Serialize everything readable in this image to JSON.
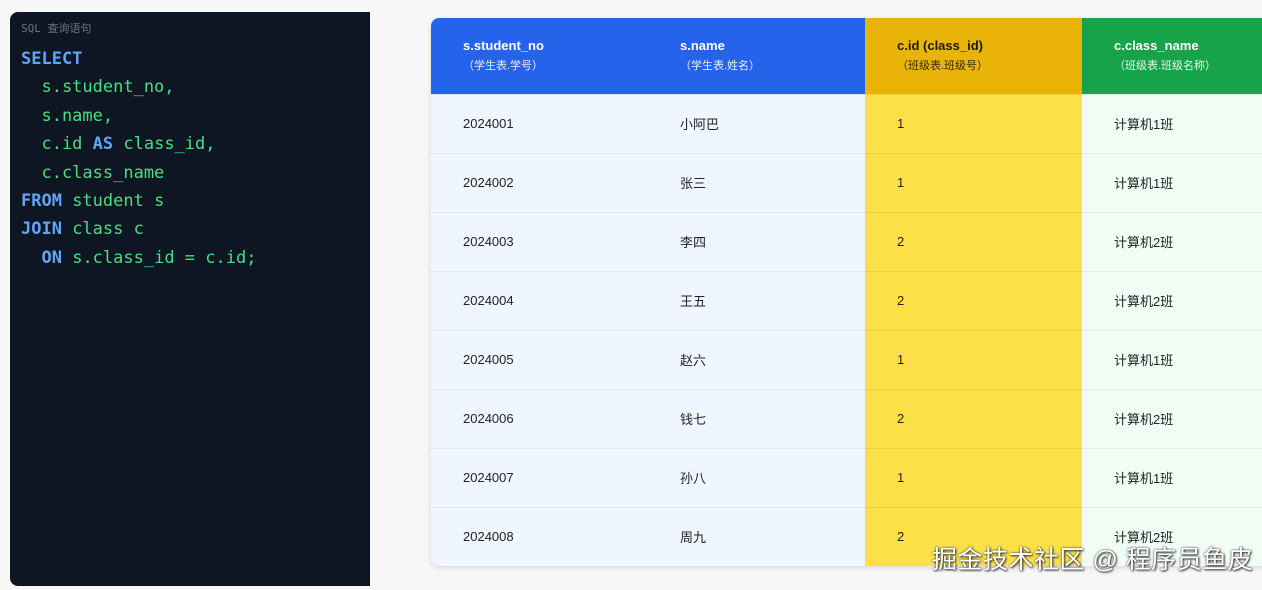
{
  "code_panel": {
    "label": "SQL 查询语句",
    "lines": [
      [
        {
          "t": "SELECT",
          "k": 1
        }
      ],
      [
        {
          "t": "  s.student_no,"
        }
      ],
      [
        {
          "t": "  s.name,"
        }
      ],
      [
        {
          "t": "  c.id "
        },
        {
          "t": "AS",
          "k": 1
        },
        {
          "t": " class_id,"
        }
      ],
      [
        {
          "t": "  c.class_name"
        }
      ],
      [
        {
          "t": "FROM",
          "k": 1
        },
        {
          "t": " student s"
        }
      ],
      [
        {
          "t": "JOIN",
          "k": 1
        },
        {
          "t": " class c"
        }
      ],
      [
        {
          "t": "  "
        },
        {
          "t": "ON",
          "k": 1
        },
        {
          "t": " s.class_id = c.id;"
        }
      ]
    ]
  },
  "table": {
    "columns": [
      {
        "title": "s.student_no",
        "sub": "（学生表.学号）",
        "group": "b"
      },
      {
        "title": "s.name",
        "sub": "（学生表.姓名）",
        "group": "b"
      },
      {
        "title": "c.id (class_id)",
        "sub": "（班级表.班级号）",
        "group": "y"
      },
      {
        "title": "c.class_name",
        "sub": "（班级表.班级名称）",
        "group": "g"
      }
    ],
    "rows": [
      [
        "2024001",
        "小阿巴",
        "1",
        "计算机1班"
      ],
      [
        "2024002",
        "张三",
        "1",
        "计算机1班"
      ],
      [
        "2024003",
        "李四",
        "2",
        "计算机2班"
      ],
      [
        "2024004",
        "王五",
        "2",
        "计算机2班"
      ],
      [
        "2024005",
        "赵六",
        "1",
        "计算机1班"
      ],
      [
        "2024006",
        "钱七",
        "2",
        "计算机2班"
      ],
      [
        "2024007",
        "孙八",
        "1",
        "计算机1班"
      ],
      [
        "2024008",
        "周九",
        "2",
        "计算机2班"
      ]
    ]
  },
  "colors": {
    "blue": "#2563eb",
    "yellow": "#eab308",
    "green": "#16a34a"
  },
  "watermark": "掘金技术社区 @ 程序员鱼皮"
}
